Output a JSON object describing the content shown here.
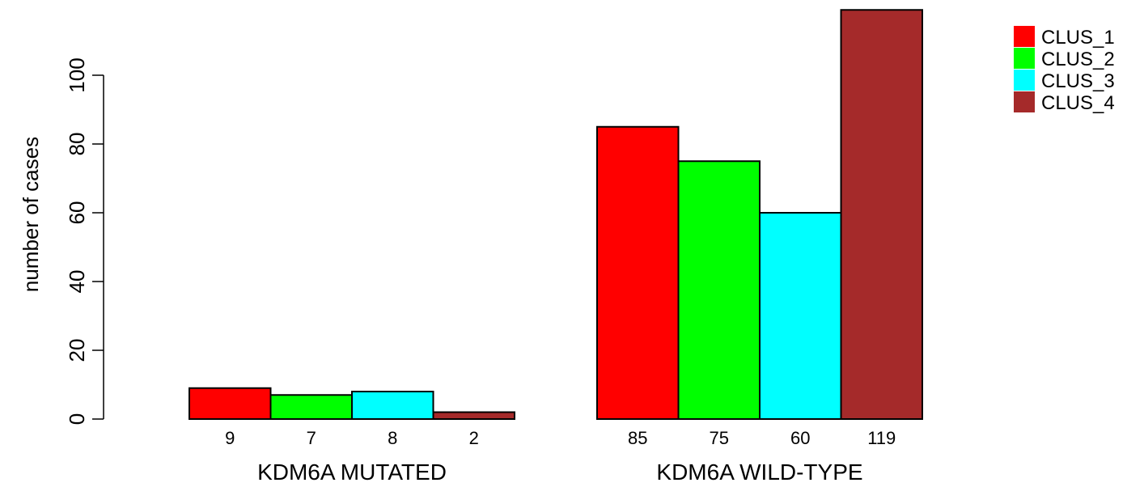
{
  "chart_data": {
    "type": "bar",
    "categories": [
      "KDM6A MUTATED",
      "KDM6A WILD-TYPE"
    ],
    "series": [
      {
        "name": "CLUS_1",
        "color": "#ff0000",
        "values": [
          9,
          85
        ]
      },
      {
        "name": "CLUS_2",
        "color": "#00ff00",
        "values": [
          7,
          75
        ]
      },
      {
        "name": "CLUS_3",
        "color": "#00ffff",
        "values": [
          8,
          60
        ]
      },
      {
        "name": "CLUS_4",
        "color": "#a52a2a",
        "values": [
          2,
          119
        ]
      }
    ],
    "bar_labels": [
      [
        "9",
        "7",
        "8",
        "2"
      ],
      [
        "85",
        "75",
        "60",
        "119"
      ]
    ],
    "ylabel": "number of cases",
    "yticks": [
      0,
      20,
      40,
      60,
      80,
      100
    ],
    "ylim": [
      0,
      119
    ],
    "legend_position": "top-right",
    "grid": false
  }
}
